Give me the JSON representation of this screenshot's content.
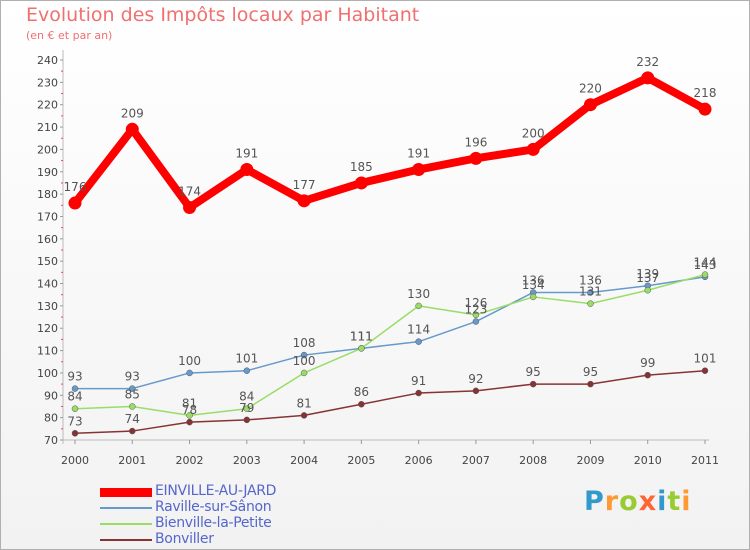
{
  "chart_data": {
    "type": "line",
    "title": "Evolution des Impôts locaux par Habitant",
    "subtitle": "(en € et par an)",
    "xlabel": "",
    "ylabel": "",
    "x": [
      "2000",
      "2001",
      "2002",
      "2003",
      "2004",
      "2005",
      "2006",
      "2007",
      "2008",
      "2009",
      "2010",
      "2011"
    ],
    "ylim": [
      70,
      240
    ],
    "yticks": [
      "70",
      "80",
      "90",
      "100",
      "110",
      "120",
      "130",
      "140",
      "150",
      "160",
      "170",
      "180",
      "190",
      "200",
      "210",
      "220",
      "230",
      "240"
    ],
    "grid": false,
    "legend_position": "bottom-left",
    "series": [
      {
        "name": "EINVILLE-AU-JARD",
        "color": "#ff0000",
        "values": [
          176,
          209,
          174,
          191,
          177,
          185,
          191,
          196,
          200,
          220,
          232,
          218
        ]
      },
      {
        "name": "Raville-sur-Sânon",
        "color": "#6699cc",
        "values": [
          93,
          93,
          100,
          101,
          108,
          111,
          114,
          123,
          136,
          136,
          139,
          143
        ]
      },
      {
        "name": "Bienville-la-Petite",
        "color": "#99dd66",
        "values": [
          84,
          85,
          81,
          84,
          100,
          111,
          130,
          126,
          134,
          131,
          137,
          144
        ]
      },
      {
        "name": "Bonviller",
        "color": "#883333",
        "values": [
          73,
          74,
          78,
          79,
          81,
          86,
          91,
          92,
          95,
          95,
          99,
          101
        ]
      }
    ]
  },
  "brand": {
    "letters": [
      "P",
      "r",
      "o",
      "x",
      "i",
      "t",
      "i"
    ],
    "colors": [
      "#3399cc",
      "#ff9933",
      "#99cc33",
      "#ff6633",
      "#3399cc",
      "#99cc33",
      "#ff9933"
    ]
  }
}
